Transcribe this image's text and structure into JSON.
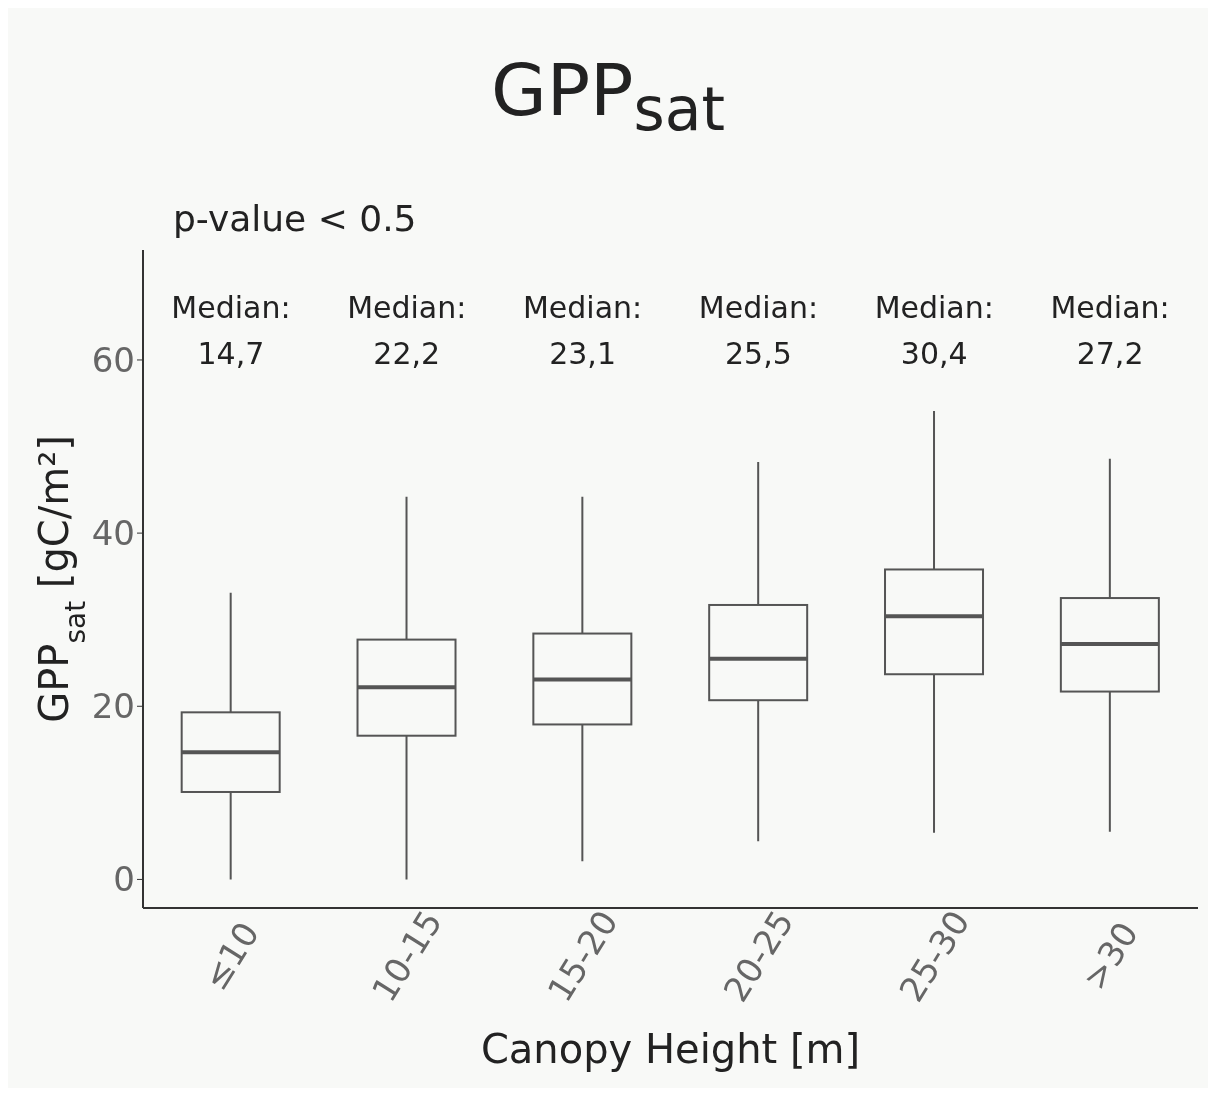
{
  "chart_data": {
    "type": "box",
    "title": "GPP$_{sat}$",
    "xlabel": "Canopy Height [m]",
    "ylabel": "GPP$_{sat}$ [gC/m²]",
    "categories": [
      "≤10",
      "10-15",
      "15-20",
      "20-25",
      "25-30",
      ">30"
    ],
    "boxes": [
      {
        "low": 0,
        "q1": 10.1,
        "median": 14.7,
        "q3": 19.3,
        "high": 33.1
      },
      {
        "low": 0,
        "q1": 16.6,
        "median": 22.2,
        "q3": 27.7,
        "high": 44.2
      },
      {
        "low": 2.1,
        "q1": 17.9,
        "median": 23.1,
        "q3": 28.4,
        "high": 44.2
      },
      {
        "low": 4.4,
        "q1": 20.7,
        "median": 25.5,
        "q3": 31.7,
        "high": 48.2
      },
      {
        "low": 5.4,
        "q1": 23.7,
        "median": 30.4,
        "q3": 35.8,
        "high": 54.1
      },
      {
        "low": 5.5,
        "q1": 21.7,
        "median": 27.2,
        "q3": 32.5,
        "high": 48.6
      }
    ],
    "color": "#555555",
    "ylim": [
      -3.3,
      72.7
    ],
    "yticks": [
      0,
      20,
      40,
      60
    ],
    "grid": false,
    "annotations": [
      "p-value < 0.5",
      "Median:\n14,7",
      "Median:\n22,2",
      "Median:\n23,1",
      "Median:\n25,5",
      "Median:\n30,4",
      "Median:\n27,2"
    ]
  }
}
